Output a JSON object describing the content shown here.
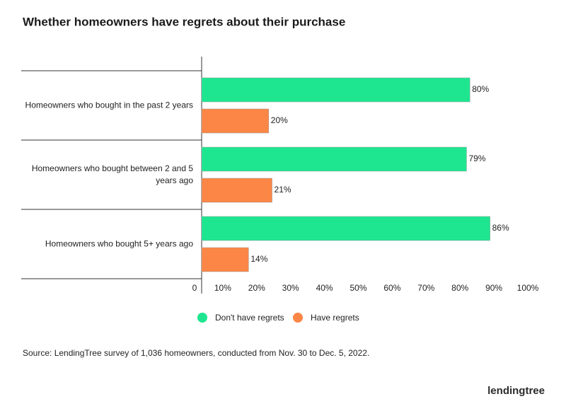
{
  "title": "Whether homeowners have regrets about their purchase",
  "chart_data": {
    "type": "hbar",
    "categories": [
      "Homeowners who bought in the past 2 years",
      "Homeowners who bought between 2 and 5 years ago",
      "Homeowners who bought 5+ years ago"
    ],
    "series": [
      {
        "name": "Don't have regrets",
        "color": "#1ee690",
        "values": [
          80,
          79,
          86
        ],
        "value_labels": [
          "80%",
          "79%",
          "86%"
        ]
      },
      {
        "name": "Have regrets",
        "color": "#fb8646",
        "values": [
          20,
          21,
          14
        ],
        "value_labels": [
          "20%",
          "21%",
          "14%"
        ]
      }
    ],
    "xlim": [
      0,
      100
    ],
    "xticks": [
      0,
      {
        "value": 10,
        "label": "10%"
      },
      {
        "value": 20,
        "label": "20%"
      },
      {
        "value": 30,
        "label": "30%"
      },
      {
        "value": 40,
        "label": "40%"
      },
      {
        "value": 50,
        "label": "50%"
      },
      {
        "value": 60,
        "label": "60%"
      },
      {
        "value": 70,
        "label": "70%"
      },
      {
        "value": 80,
        "label": "80%"
      },
      {
        "value": 90,
        "label": "90%"
      },
      {
        "value": 100,
        "label": "100%"
      }
    ],
    "grid": false,
    "legend": "bottom"
  },
  "source": "Source: LendingTree survey of 1,036 homeowners, conducted from Nov. 30 to Dec. 5, 2022.",
  "logo": "lendingtree"
}
